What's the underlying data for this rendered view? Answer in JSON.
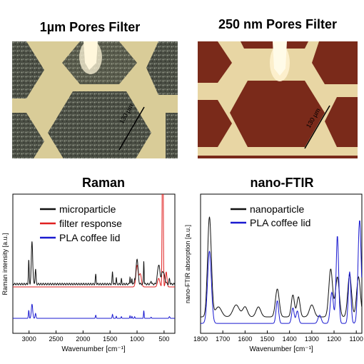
{
  "panels": {
    "top_left_title": "1µm Pores Filter",
    "top_right_title": "250 nm Pores Filter",
    "top_left_scale": "130 µm",
    "top_right_scale": "130 µm",
    "bottom_left_title": "Raman",
    "bottom_right_title": "nano-FTIR"
  },
  "colors": {
    "black": "#111111",
    "red": "#e02020",
    "blue": "#1a1ad0",
    "photo1_bg": "#d8c890",
    "photo1_dark": "#3a3d35",
    "photo2_bg": "#7a2a1a",
    "photo2_grid": "#e8d8a8"
  },
  "chart_data": [
    {
      "type": "line",
      "title": "Raman",
      "xlabel": "Wavenumber [cm⁻¹]",
      "ylabel": "Raman intensity [a.u.]",
      "x_ticks": [
        "3000",
        "2500",
        "2000",
        "1500",
        "1000",
        "500"
      ],
      "x_reversed": true,
      "xlim": [
        3300,
        300
      ],
      "legend": "top-right",
      "series": [
        {
          "name": "microparticle",
          "color": "#111111"
        },
        {
          "name": "filter response",
          "color": "#e02020"
        },
        {
          "name": "PLA coffee lid",
          "color": "#1a1ad0"
        }
      ]
    },
    {
      "type": "line",
      "title": "nano-FTIR",
      "xlabel": "Wavenumber [cm⁻¹]",
      "ylabel": "nano-FTIR absorption [a.u.]",
      "x_ticks": [
        "1800",
        "1700",
        "1600",
        "1500",
        "1400",
        "1300",
        "1200",
        "1100"
      ],
      "x_reversed": true,
      "xlim": [
        1800,
        1075
      ],
      "legend": "top-right",
      "series": [
        {
          "name": "nanoparticle",
          "color": "#111111"
        },
        {
          "name": "PLA coffee lid",
          "color": "#1a1ad0"
        }
      ]
    }
  ]
}
